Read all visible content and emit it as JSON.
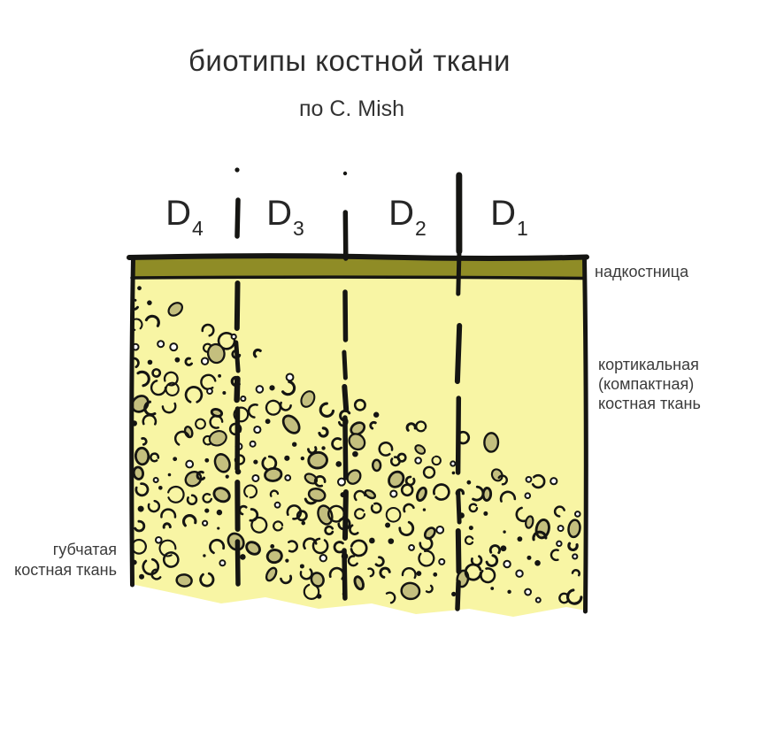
{
  "title": "биотипы костной ткани",
  "subtitle": "по C. Mish",
  "density_labels": [
    {
      "base": "D",
      "sub": "4"
    },
    {
      "base": "D",
      "sub": "3"
    },
    {
      "base": "D",
      "sub": "2"
    },
    {
      "base": "D",
      "sub": "1"
    }
  ],
  "annotations": {
    "periosteum": "надкостница",
    "cortical_line1": "кортикальная",
    "cortical_line2": "(компактная)",
    "cortical_line3": "костная ткань",
    "spongy_line1": "губчатая",
    "spongy_line2": "костная ткань"
  },
  "colors": {
    "bone_yellow": "#f8f5a4",
    "periosteum_olive": "#8f8c26",
    "trabecula_fill": "#c4bf7e",
    "ink": "#151512",
    "label_text": "#3b3b3b"
  }
}
